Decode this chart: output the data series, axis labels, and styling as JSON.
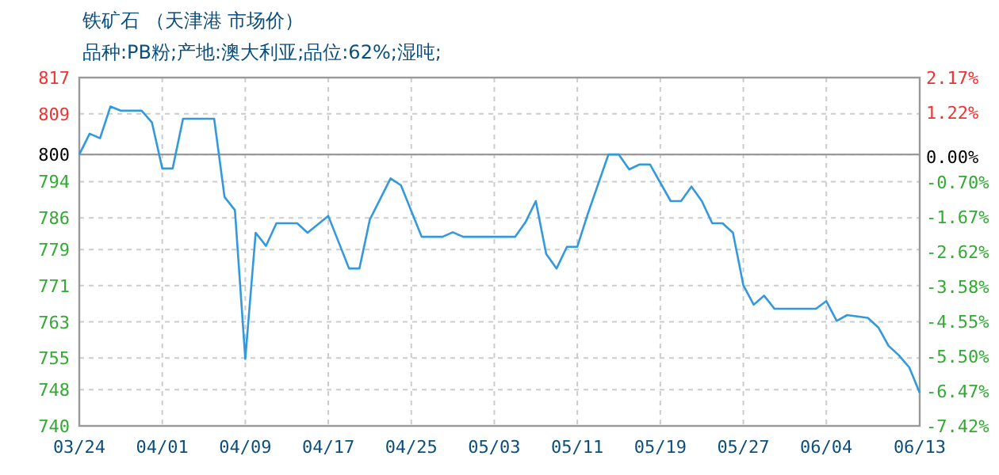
{
  "chart_data": {
    "type": "line",
    "title": "铁矿石 （天津港 市场价）",
    "subtitle": "品种:PB粉;产地:澳大利亚;品位:62%;湿吨;",
    "series": [
      {
        "color": "#3399dd",
        "x": [
          "--03-24",
          "--03-25",
          "--03-26",
          "--03-27",
          "--03-28",
          "--03-30",
          "--03-31",
          "--04-01",
          "--04-02",
          "--04-03",
          "--04-06",
          "--04-07",
          "--04-08",
          "--04-09",
          "--04-10",
          "--04-11",
          "--04-12",
          "--04-14",
          "--04-15",
          "--04-17",
          "--04-19",
          "--04-20",
          "--04-21",
          "--04-23",
          "--04-24",
          "--04-26",
          "--04-28",
          "--04-29",
          "--04-30",
          "--05-05",
          "--05-06",
          "--05-07",
          "--05-08",
          "--05-09",
          "--05-10",
          "--05-11",
          "--05-12",
          "--05-14",
          "--05-15",
          "--05-16",
          "--05-17",
          "--05-18",
          "--05-20",
          "--05-21",
          "--05-22",
          "--05-23",
          "--05-24",
          "--05-25",
          "--05-26",
          "--05-27",
          "--05-28",
          "--05-29",
          "--05-30",
          "--06-03",
          "--06-04",
          "--06-05",
          "--06-06",
          "--06-08",
          "--06-09",
          "--06-10",
          "--06-11",
          "--06-12",
          "--06-13"
        ],
        "values": [
          800.0,
          804.6,
          803.6,
          810.6,
          809.7,
          809.7,
          807.1,
          796.9,
          796.9,
          807.9,
          807.9,
          790.6,
          787.7,
          754.8,
          782.7,
          779.8,
          784.8,
          784.8,
          782.7,
          786.4,
          774.8,
          774.8,
          785.6,
          794.7,
          793.2,
          781.8,
          781.8,
          782.8,
          781.8,
          781.8,
          785.0,
          789.7,
          778.0,
          774.8,
          779.6,
          779.6,
          786.8,
          800.0,
          800.0,
          796.7,
          797.8,
          797.8,
          789.7,
          789.7,
          792.9,
          789.7,
          784.8,
          784.8,
          782.7,
          771.1,
          766.8,
          768.8,
          765.9,
          765.9,
          767.6,
          763.2,
          764.5,
          763.9,
          761.8,
          757.7,
          755.6,
          752.9,
          747.3
        ]
      }
    ],
    "xlim": [
      "--03-24",
      "--06-13"
    ],
    "xticks": [
      {
        "value": "--03-24",
        "label": "03/24"
      },
      {
        "value": "--04-01",
        "label": "04/01"
      },
      {
        "value": "--04-09",
        "label": "04/09"
      },
      {
        "value": "--04-17",
        "label": "04/17"
      },
      {
        "value": "--04-25",
        "label": "04/25"
      },
      {
        "value": "--05-03",
        "label": "05/03"
      },
      {
        "value": "--05-11",
        "label": "05/11"
      },
      {
        "value": "--05-19",
        "label": "05/19"
      },
      {
        "value": "--05-27",
        "label": "05/27"
      },
      {
        "value": "--06-04",
        "label": "06/04"
      },
      {
        "value": "--06-13",
        "label": "06/13"
      }
    ],
    "ylim": [
      740,
      817
    ],
    "yticks": [
      817,
      809,
      800,
      794,
      786,
      779,
      771,
      763,
      755,
      748,
      740
    ],
    "y2lim": [
      -7.42,
      2.17
    ],
    "y2ticks": [
      {
        "value": 2.17,
        "label": "2.17%"
      },
      {
        "value": 1.22,
        "label": "1.22%"
      },
      {
        "value": 0,
        "label": "0.00%"
      },
      {
        "value": -0.7,
        "label": "-0.70%"
      },
      {
        "value": -1.67,
        "label": "-1.67%"
      },
      {
        "value": -2.62,
        "label": "-2.62%"
      },
      {
        "value": -3.58,
        "label": "-3.58%"
      },
      {
        "value": -4.55,
        "label": "-4.55%"
      },
      {
        "value": -5.5,
        "label": "-5.50%"
      },
      {
        "value": -6.47,
        "label": "-6.47%"
      },
      {
        "value": -7.42,
        "label": "-7.42%"
      }
    ],
    "ref_lines": [
      {
        "axis": "y",
        "value": 800,
        "color": "#999999",
        "line_style": "solid"
      }
    ],
    "grid": true
  }
}
